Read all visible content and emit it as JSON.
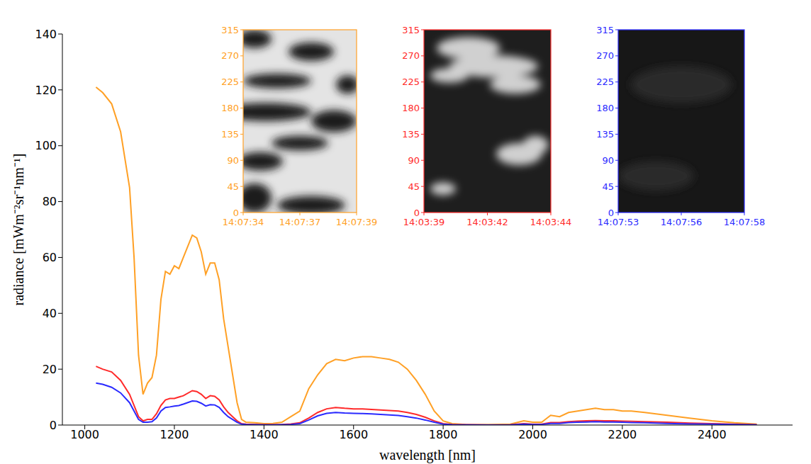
{
  "chart_data": [
    {
      "type": "line",
      "xlabel": "wavelength [nm]",
      "ylabel": "radiance  [mWm⁻²sr⁻¹nm⁻¹]",
      "grid": false,
      "x": [
        1025,
        1040,
        1060,
        1080,
        1100,
        1110,
        1120,
        1130,
        1140,
        1150,
        1160,
        1170,
        1180,
        1190,
        1200,
        1210,
        1220,
        1240,
        1250,
        1260,
        1270,
        1280,
        1290,
        1300,
        1310,
        1320,
        1330,
        1340,
        1350,
        1360,
        1380,
        1400,
        1420,
        1440,
        1460,
        1480,
        1500,
        1520,
        1540,
        1560,
        1580,
        1600,
        1620,
        1640,
        1660,
        1680,
        1700,
        1720,
        1740,
        1760,
        1780,
        1800,
        1820,
        1850,
        1900,
        1950,
        1980,
        2000,
        2020,
        2040,
        2060,
        2080,
        2100,
        2120,
        2140,
        2160,
        2180,
        2200,
        2220,
        2250,
        2300,
        2350,
        2400,
        2450,
        2500
      ],
      "series": [
        {
          "color": "#ffa025",
          "values": [
            121,
            119,
            115,
            105,
            85,
            60,
            25,
            11,
            15,
            17,
            25,
            45,
            55,
            54,
            57,
            56,
            60,
            68,
            67,
            62,
            54,
            58,
            58,
            52,
            38,
            28,
            18,
            8,
            2,
            1,
            0.8,
            0.5,
            0.6,
            1,
            3,
            5,
            13,
            18,
            22,
            23.5,
            23,
            24,
            24.5,
            24.5,
            24,
            23.5,
            22.5,
            20,
            16,
            11,
            5,
            1.5,
            0.5,
            0.2,
            0.1,
            0.3,
            1.5,
            1,
            1,
            3.5,
            3,
            4.5,
            5,
            5.5,
            6,
            5.5,
            5.5,
            5,
            5,
            4.5,
            3.5,
            2.5,
            1.5,
            0.8,
            0.3
          ]
        },
        {
          "color": "#ff2a2a",
          "values": [
            21,
            20,
            19,
            16,
            11,
            7,
            3,
            1.5,
            2,
            2,
            4,
            7,
            9,
            9.5,
            9.5,
            10,
            10.5,
            12.3,
            12,
            11,
            9.5,
            10.5,
            10.3,
            9,
            6.5,
            4.5,
            3,
            1.5,
            0.5,
            0.3,
            0.2,
            0.1,
            0.1,
            0.2,
            0.4,
            0.8,
            2.5,
            4.5,
            5.8,
            6.3,
            6,
            5.8,
            5.8,
            5.6,
            5.4,
            5.2,
            5,
            4.5,
            3.8,
            2.8,
            1.5,
            0.5,
            0.2,
            0.1,
            0.05,
            0.1,
            0.5,
            0.3,
            0.3,
            0.9,
            0.9,
            1.2,
            1.4,
            1.5,
            1.6,
            1.5,
            1.5,
            1.4,
            1.3,
            1.2,
            1,
            0.7,
            0.5,
            0.3,
            0.1
          ]
        },
        {
          "color": "#2a2aff",
          "values": [
            15,
            14.6,
            13.5,
            11.5,
            8,
            5,
            2,
            1,
            1,
            1.2,
            2.5,
            5,
            6.3,
            6.5,
            6.8,
            7,
            7.5,
            8.6,
            8.5,
            7.8,
            6.8,
            7.3,
            7.2,
            6.3,
            4.5,
            3,
            2,
            1,
            0.3,
            0.2,
            0.1,
            0.05,
            0.05,
            0.1,
            0.2,
            0.5,
            1.8,
            3.3,
            4.2,
            4.5,
            4.3,
            4.2,
            4.1,
            4,
            3.8,
            3.6,
            3.4,
            3,
            2.5,
            1.8,
            1,
            0.3,
            0.1,
            0.05,
            0.02,
            0.05,
            0.3,
            0.2,
            0.2,
            0.6,
            0.6,
            0.9,
            1,
            1.1,
            1.2,
            1.1,
            1.1,
            1,
            0.9,
            0.8,
            0.6,
            0.4,
            0.3,
            0.2,
            0.05
          ]
        }
      ],
      "xlim": [
        950,
        2580
      ],
      "xticks": [
        1000,
        1200,
        1400,
        1600,
        1800,
        2000,
        2200,
        2400
      ],
      "ylim": [
        0,
        140
      ],
      "yticks": [
        0,
        20,
        40,
        60,
        80,
        100,
        120,
        140
      ]
    },
    {
      "type": "image",
      "color": "#ffa025",
      "categories": [
        "14:07:34",
        "14:07:37",
        "14:07:39"
      ],
      "ylim": [
        0,
        315
      ],
      "yticks": [
        0,
        45,
        90,
        135,
        180,
        225,
        270,
        315
      ]
    },
    {
      "type": "image",
      "color": "#ff2a2a",
      "categories": [
        "14:03:39",
        "14:03:42",
        "14:03:44"
      ],
      "ylim": [
        0,
        315
      ],
      "yticks": [
        0,
        45,
        90,
        135,
        180,
        225,
        270,
        315
      ]
    },
    {
      "type": "image",
      "color": "#2a2aff",
      "categories": [
        "14:07:53",
        "14:07:56",
        "14:07:58"
      ],
      "ylim": [
        0,
        315
      ],
      "yticks": [
        0,
        45,
        90,
        135,
        180,
        225,
        270,
        315
      ]
    }
  ]
}
